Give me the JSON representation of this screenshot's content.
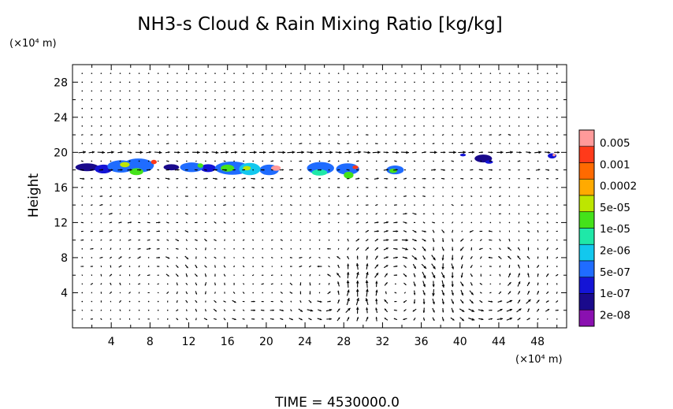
{
  "chart_data": {
    "type": "heatmap",
    "title": "NH3-s Cloud & Rain Mixing Ratio [kg/kg]",
    "ylabel": "Height",
    "x_unit_label": "(×10⁴ m)",
    "y_unit_label": "(×10⁴ m)",
    "time_label": "TIME = 4530000.0",
    "xlim": [
      0,
      51
    ],
    "ylim": [
      0,
      30
    ],
    "x_ticks": [
      4,
      8,
      12,
      16,
      20,
      24,
      28,
      32,
      36,
      40,
      44,
      48
    ],
    "y_ticks": [
      4,
      8,
      12,
      16,
      20,
      24,
      28
    ],
    "colorbar": {
      "labels": [
        "0.005",
        "0.001",
        "0.0002",
        "5e-05",
        "1e-05",
        "2e-06",
        "5e-07",
        "1e-07",
        "2e-08"
      ],
      "colors": [
        "#ff9a9a",
        "#ff3a1a",
        "#ff6a00",
        "#ffaa00",
        "#bde600",
        "#44e21a",
        "#1fe8a8",
        "#12c8ee",
        "#1f6cff",
        "#1414d6",
        "#1a0a8c",
        "#8a10b0"
      ]
    },
    "cloud_patches": [
      {
        "x": 1.5,
        "y": 18.3,
        "rx": 1.2,
        "ry": 0.45,
        "level": 10
      },
      {
        "x": 3.2,
        "y": 18.1,
        "rx": 0.9,
        "ry": 0.5,
        "level": 9
      },
      {
        "x": 5.0,
        "y": 18.4,
        "rx": 1.4,
        "ry": 0.7,
        "level": 8
      },
      {
        "x": 6.8,
        "y": 18.5,
        "rx": 1.6,
        "ry": 0.8,
        "level": 8
      },
      {
        "x": 6.6,
        "y": 17.8,
        "rx": 0.7,
        "ry": 0.4,
        "level": 5
      },
      {
        "x": 5.4,
        "y": 18.6,
        "rx": 0.5,
        "ry": 0.3,
        "level": 4
      },
      {
        "x": 8.4,
        "y": 18.9,
        "rx": 0.3,
        "ry": 0.25,
        "level": 1
      },
      {
        "x": 10.2,
        "y": 18.3,
        "rx": 0.8,
        "ry": 0.35,
        "level": 10
      },
      {
        "x": 12.3,
        "y": 18.3,
        "rx": 1.2,
        "ry": 0.55,
        "level": 8
      },
      {
        "x": 14.0,
        "y": 18.2,
        "rx": 0.8,
        "ry": 0.45,
        "level": 9
      },
      {
        "x": 13.2,
        "y": 18.5,
        "rx": 0.3,
        "ry": 0.25,
        "level": 5
      },
      {
        "x": 16.5,
        "y": 18.2,
        "rx": 1.8,
        "ry": 0.75,
        "level": 8
      },
      {
        "x": 18.3,
        "y": 18.1,
        "rx": 1.1,
        "ry": 0.7,
        "level": 7
      },
      {
        "x": 20.3,
        "y": 18.0,
        "rx": 1.0,
        "ry": 0.6,
        "level": 8
      },
      {
        "x": 16.0,
        "y": 18.2,
        "rx": 0.7,
        "ry": 0.4,
        "level": 5
      },
      {
        "x": 18.0,
        "y": 18.2,
        "rx": 0.4,
        "ry": 0.25,
        "level": 4
      },
      {
        "x": 21.0,
        "y": 18.2,
        "rx": 0.5,
        "ry": 0.3,
        "level": 0
      },
      {
        "x": 25.6,
        "y": 18.2,
        "rx": 1.4,
        "ry": 0.7,
        "level": 8
      },
      {
        "x": 25.5,
        "y": 17.7,
        "rx": 0.8,
        "ry": 0.35,
        "level": 6
      },
      {
        "x": 28.4,
        "y": 18.1,
        "rx": 1.2,
        "ry": 0.65,
        "level": 8
      },
      {
        "x": 28.5,
        "y": 17.4,
        "rx": 0.5,
        "ry": 0.4,
        "level": 5
      },
      {
        "x": 29.2,
        "y": 18.3,
        "rx": 0.3,
        "ry": 0.2,
        "level": 1
      },
      {
        "x": 33.3,
        "y": 18.0,
        "rx": 0.9,
        "ry": 0.5,
        "level": 8
      },
      {
        "x": 33.1,
        "y": 17.9,
        "rx": 0.4,
        "ry": 0.25,
        "level": 5
      },
      {
        "x": 42.4,
        "y": 19.3,
        "rx": 0.9,
        "ry": 0.45,
        "level": 10
      },
      {
        "x": 43.0,
        "y": 18.9,
        "rx": 0.4,
        "ry": 0.2,
        "level": 9
      },
      {
        "x": 40.3,
        "y": 19.7,
        "rx": 0.3,
        "ry": 0.15,
        "level": 9
      },
      {
        "x": 49.5,
        "y": 19.6,
        "rx": 0.45,
        "ry": 0.3,
        "level": 9
      },
      {
        "x": 49.7,
        "y": 19.7,
        "rx": 0.15,
        "ry": 0.15,
        "level": 0
      }
    ],
    "circulation_cells": [
      {
        "x": 26.5,
        "y": 4.0,
        "rx": 3.5,
        "ry": 4.0,
        "dir": 1,
        "strength": 1.3
      },
      {
        "x": 33.5,
        "y": 5.0,
        "rx": 4.0,
        "ry": 5.0,
        "dir": -1,
        "strength": 1.3
      },
      {
        "x": 43.0,
        "y": 5.5,
        "rx": 4.5,
        "ry": 5.5,
        "dir": 1,
        "strength": 1.3
      },
      {
        "x": 8.5,
        "y": 6.0,
        "rx": 5.0,
        "ry": 5.0,
        "dir": -1,
        "strength": 0.55
      },
      {
        "x": 18.5,
        "y": 5.0,
        "rx": 5.0,
        "ry": 5.0,
        "dir": 1,
        "strength": 0.5
      }
    ]
  }
}
